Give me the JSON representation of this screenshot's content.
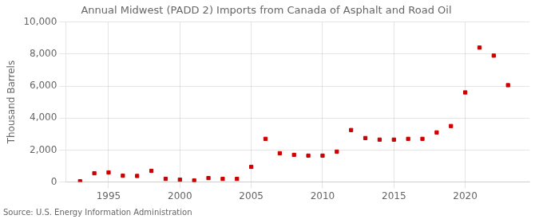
{
  "chart_data": {
    "type": "scatter",
    "title": "Annual Midwest (PADD 2) Imports from Canada of Asphalt and Road Oil",
    "ylabel": "Thousand Barrels",
    "source": "Source: U.S. Energy Information Administration",
    "x": [
      1993,
      1994,
      1995,
      1996,
      1997,
      1998,
      1999,
      2000,
      2001,
      2002,
      2003,
      2004,
      2005,
      2006,
      2007,
      2008,
      2009,
      2010,
      2011,
      2012,
      2013,
      2014,
      2015,
      2016,
      2017,
      2018,
      2019,
      2020,
      2021,
      2022,
      2023
    ],
    "values": [
      50,
      550,
      600,
      400,
      380,
      700,
      200,
      150,
      100,
      250,
      200,
      200,
      950,
      2700,
      1800,
      1700,
      1650,
      1650,
      1900,
      3250,
      2750,
      2650,
      2650,
      2700,
      2700,
      3100,
      3500,
      5600,
      8400,
      7900,
      6050
    ],
    "color": "#cc0000",
    "marker": "square",
    "xlim": [
      1992.0,
      2024.5
    ],
    "xticks": [
      1995,
      2000,
      2005,
      2010,
      2015,
      2020
    ],
    "ylim": [
      0,
      10000
    ],
    "yticks": [
      0,
      {
        "value": 2000,
        "label": "2,000"
      },
      {
        "value": 4000,
        "label": "4,000"
      },
      {
        "value": 6000,
        "label": "6,000"
      },
      {
        "value": 8000,
        "label": "8,000"
      },
      {
        "value": 10000,
        "label": "10,000"
      }
    ],
    "grid": true
  }
}
